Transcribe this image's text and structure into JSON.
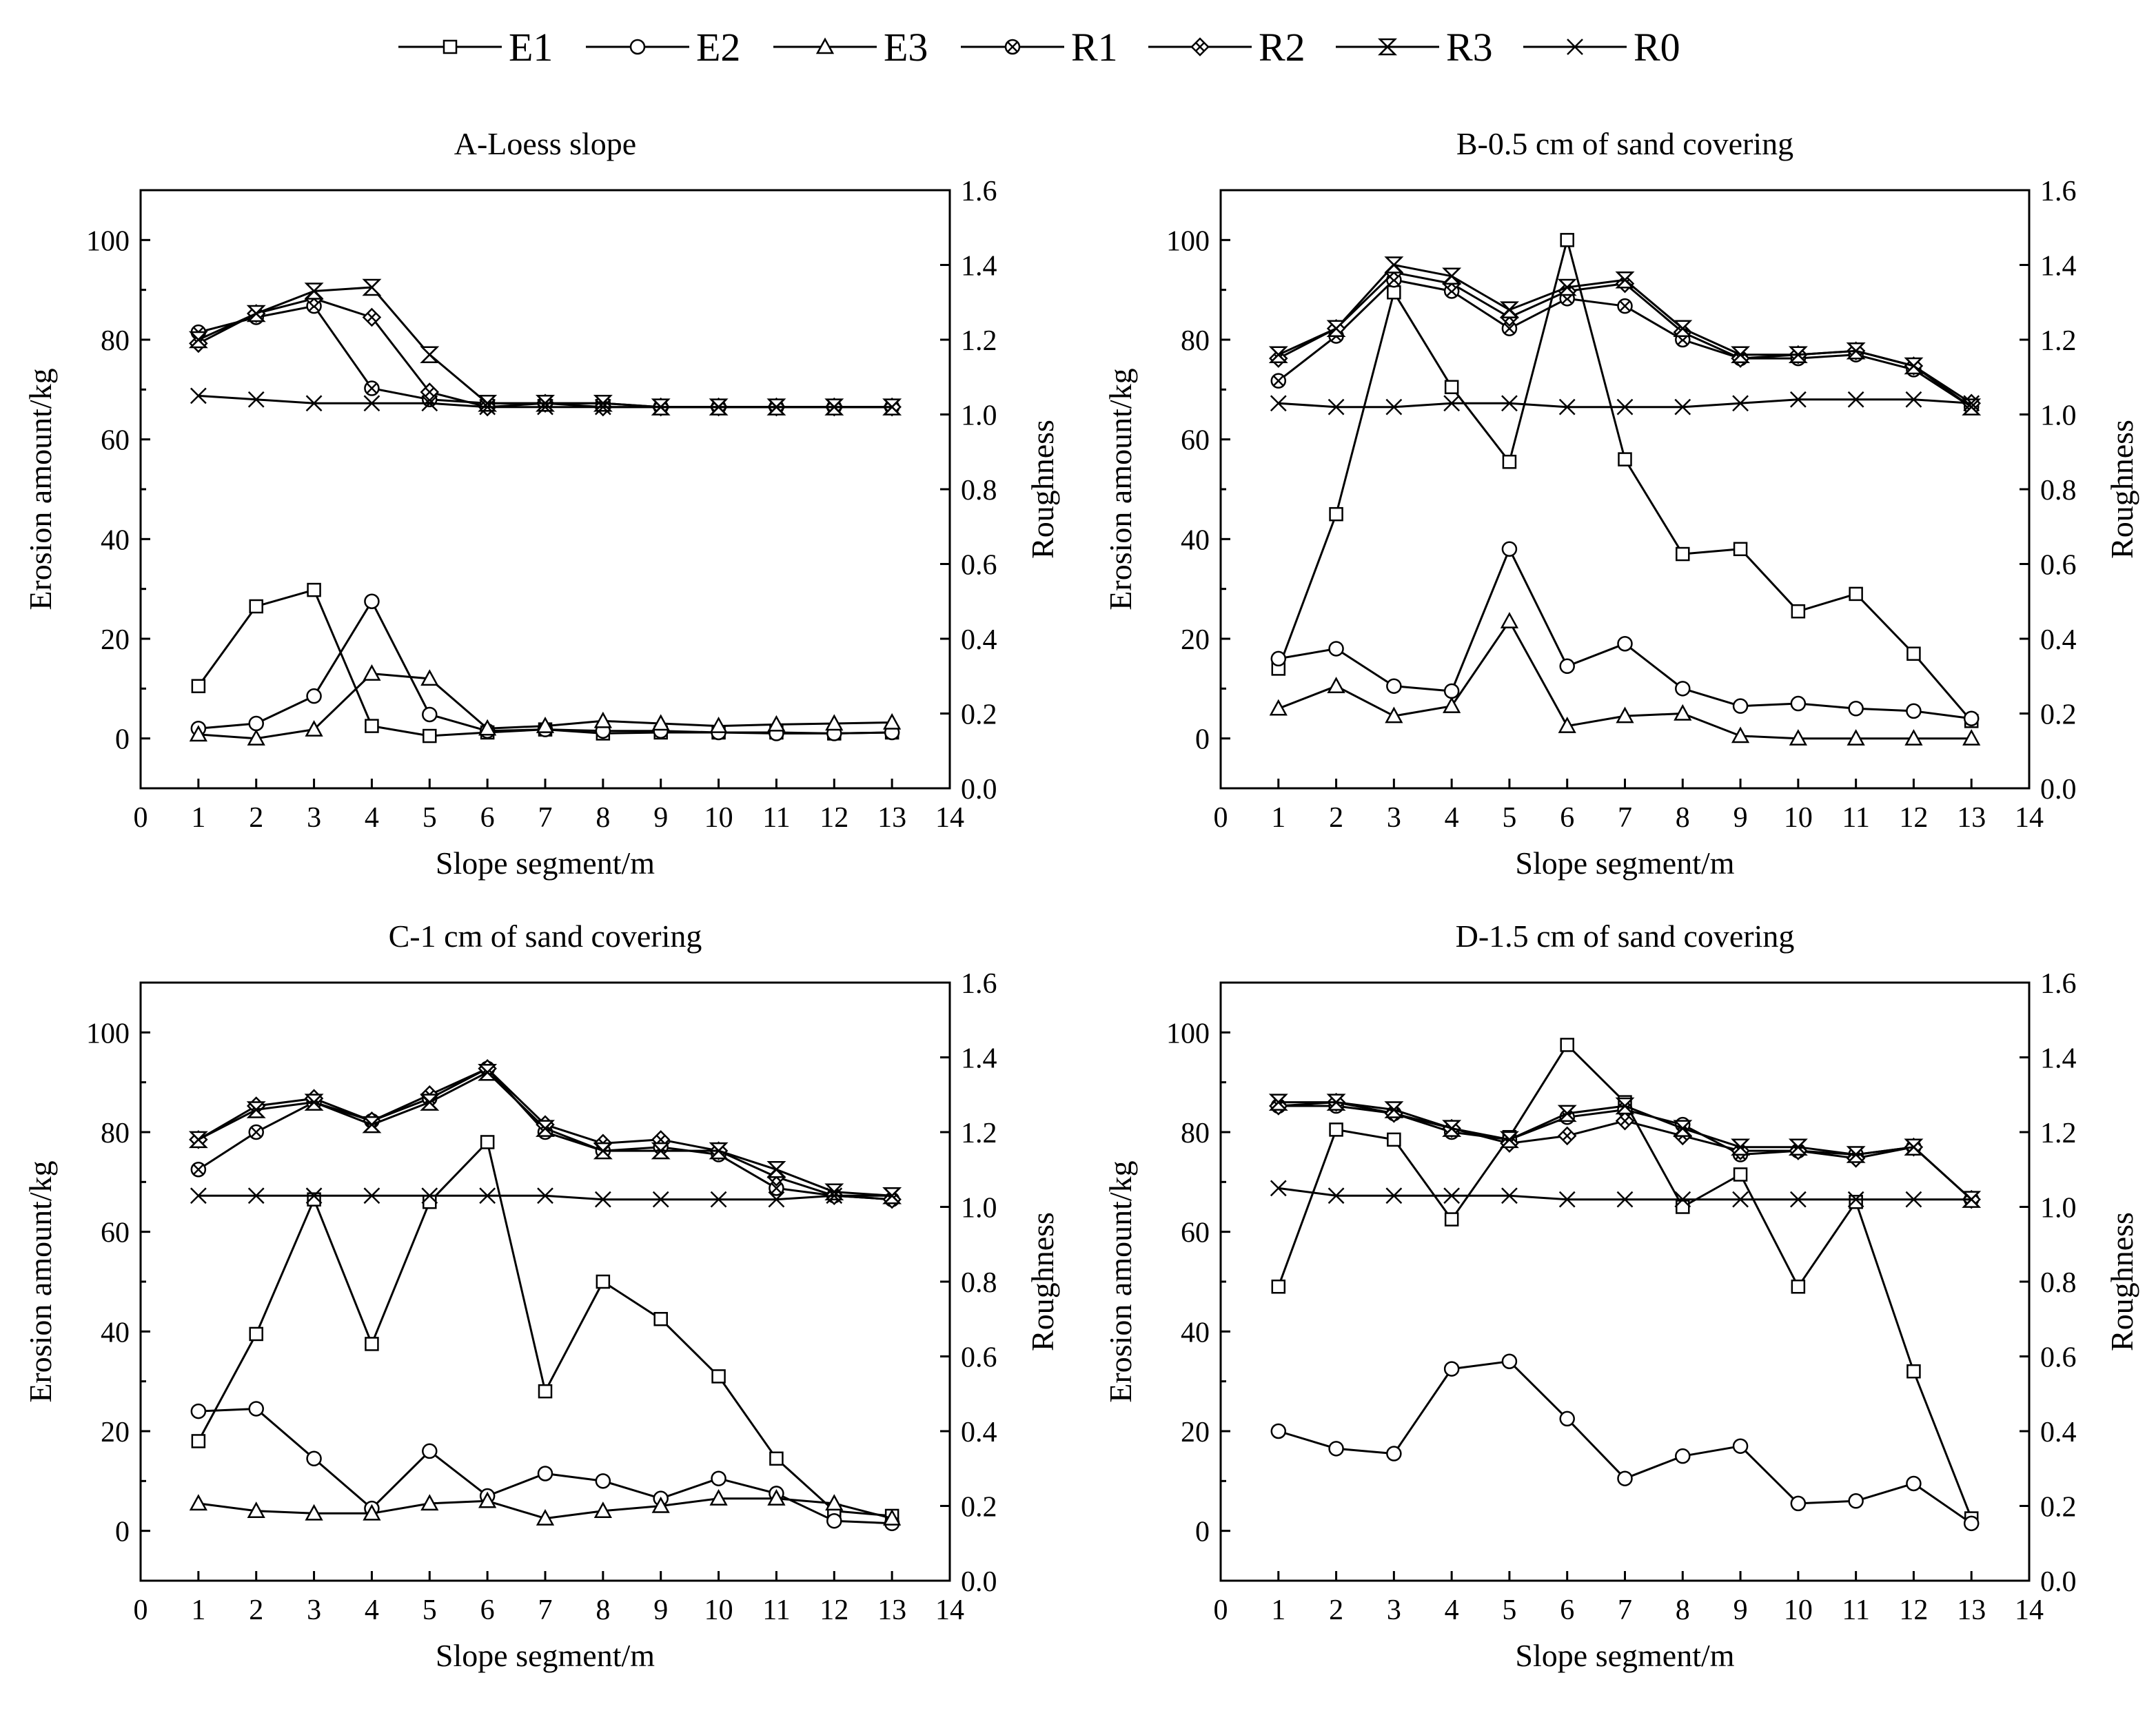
{
  "chart_data": {
    "type": "line",
    "legend": {
      "position": "top",
      "entries": [
        {
          "name": "E1",
          "marker": "square"
        },
        {
          "name": "E2",
          "marker": "circle"
        },
        {
          "name": "E3",
          "marker": "triangle"
        },
        {
          "name": "R1",
          "marker": "circle-x"
        },
        {
          "name": "R2",
          "marker": "diamond-x"
        },
        {
          "name": "R3",
          "marker": "hourglass-x"
        },
        {
          "name": "R0",
          "marker": "x"
        }
      ]
    },
    "xlabel": "Slope segment/m",
    "ylabel_left": "Erosion amount/kg",
    "ylabel_right": "Roughness",
    "xlim": [
      0,
      14
    ],
    "ylim_left": [
      -10,
      110
    ],
    "ylim_right": [
      0.0,
      1.6
    ],
    "xticks": [
      "0",
      "1",
      "2",
      "3",
      "4",
      "5",
      "6",
      "7",
      "8",
      "9",
      "10",
      "11",
      "12",
      "13",
      "14"
    ],
    "yticks_left": [
      "0",
      "20",
      "40",
      "60",
      "80",
      "100"
    ],
    "yticks_right": [
      "0.0",
      "0.2",
      "0.4",
      "0.6",
      "0.8",
      "1.0",
      "1.2",
      "1.4",
      "1.6"
    ],
    "x": [
      1,
      2,
      3,
      4,
      5,
      6,
      7,
      8,
      9,
      10,
      11,
      12,
      13
    ],
    "panels": [
      {
        "title": "A-Loess slope",
        "series": [
          {
            "name": "E1",
            "axis": "left",
            "values": [
              10.5,
              26.5,
              29.8,
              2.5,
              0.5,
              1.2,
              1.8,
              1.0,
              1.2,
              1.2,
              1.2,
              1.0,
              1.2
            ]
          },
          {
            "name": "E2",
            "axis": "left",
            "values": [
              2.0,
              3.0,
              8.5,
              27.5,
              4.8,
              1.5,
              1.8,
              1.5,
              1.5,
              1.2,
              1.0,
              1.0,
              1.2
            ]
          },
          {
            "name": "E3",
            "axis": "left",
            "values": [
              0.8,
              0.0,
              1.8,
              13.0,
              12.0,
              2.0,
              2.5,
              3.5,
              3.0,
              2.5,
              2.8,
              3.0,
              3.2
            ]
          },
          {
            "name": "R1",
            "axis": "right",
            "values": [
              1.22,
              1.26,
              1.29,
              1.07,
              1.04,
              1.03,
              1.03,
              1.03,
              1.02,
              1.02,
              1.02,
              1.02,
              1.02
            ]
          },
          {
            "name": "R2",
            "axis": "right",
            "values": [
              1.19,
              1.27,
              1.31,
              1.26,
              1.06,
              1.02,
              1.03,
              1.02,
              1.02,
              1.02,
              1.02,
              1.02,
              1.02
            ]
          },
          {
            "name": "R3",
            "axis": "right",
            "values": [
              1.2,
              1.27,
              1.33,
              1.34,
              1.16,
              1.03,
              1.03,
              1.03,
              1.02,
              1.02,
              1.02,
              1.02,
              1.02
            ]
          },
          {
            "name": "R0",
            "axis": "right",
            "values": [
              1.05,
              1.04,
              1.03,
              1.03,
              1.03,
              1.02,
              1.02,
              1.02,
              1.02,
              1.02,
              1.02,
              1.02,
              1.02
            ]
          }
        ]
      },
      {
        "title": "B-0.5 cm of sand covering",
        "series": [
          {
            "name": "E1",
            "axis": "left",
            "values": [
              14.0,
              45.0,
              89.5,
              70.5,
              55.5,
              100.0,
              56.0,
              37.0,
              38.0,
              25.5,
              29.0,
              17.0,
              3.5
            ]
          },
          {
            "name": "E2",
            "axis": "left",
            "values": [
              16.0,
              18.0,
              10.5,
              9.5,
              38.0,
              14.5,
              19.0,
              10.0,
              6.5,
              7.0,
              6.0,
              5.5,
              4.0
            ]
          },
          {
            "name": "E3",
            "axis": "left",
            "values": [
              6.0,
              10.5,
              4.5,
              6.5,
              23.5,
              2.5,
              4.5,
              5.0,
              0.5,
              0.0,
              0.0,
              0.0,
              0.0
            ]
          },
          {
            "name": "R1",
            "axis": "right",
            "values": [
              1.09,
              1.21,
              1.36,
              1.33,
              1.23,
              1.31,
              1.29,
              1.2,
              1.15,
              1.15,
              1.16,
              1.12,
              1.02
            ]
          },
          {
            "name": "R2",
            "axis": "right",
            "values": [
              1.15,
              1.23,
              1.38,
              1.35,
              1.26,
              1.33,
              1.35,
              1.22,
              1.15,
              1.16,
              1.17,
              1.13,
              1.03
            ]
          },
          {
            "name": "R3",
            "axis": "right",
            "values": [
              1.16,
              1.23,
              1.4,
              1.37,
              1.28,
              1.34,
              1.36,
              1.23,
              1.16,
              1.16,
              1.17,
              1.13,
              1.02
            ]
          },
          {
            "name": "R0",
            "axis": "right",
            "values": [
              1.03,
              1.02,
              1.02,
              1.03,
              1.03,
              1.02,
              1.02,
              1.02,
              1.03,
              1.04,
              1.04,
              1.04,
              1.03
            ]
          }
        ]
      },
      {
        "title": "C-1 cm of sand covering",
        "series": [
          {
            "name": "E1",
            "axis": "left",
            "values": [
              18.0,
              39.5,
              66.5,
              37.5,
              66.0,
              78.0,
              28.0,
              50.0,
              42.5,
              31.0,
              14.5,
              4.0,
              3.0
            ]
          },
          {
            "name": "E2",
            "axis": "left",
            "values": [
              24.0,
              24.5,
              14.5,
              4.5,
              16.0,
              7.0,
              11.5,
              10.0,
              6.5,
              10.5,
              7.5,
              2.0,
              1.5
            ]
          },
          {
            "name": "E3",
            "axis": "left",
            "values": [
              5.5,
              4.0,
              3.5,
              3.5,
              5.5,
              6.0,
              2.5,
              4.0,
              5.0,
              6.5,
              6.5,
              5.5,
              2.5
            ]
          },
          {
            "name": "R1",
            "axis": "right",
            "values": [
              1.1,
              1.2,
              1.28,
              1.23,
              1.29,
              1.37,
              1.2,
              1.15,
              1.16,
              1.14,
              1.05,
              1.03,
              1.02
            ]
          },
          {
            "name": "R2",
            "axis": "right",
            "values": [
              1.18,
              1.27,
              1.29,
              1.23,
              1.3,
              1.37,
              1.22,
              1.17,
              1.18,
              1.15,
              1.08,
              1.03,
              1.02
            ]
          },
          {
            "name": "R3",
            "axis": "right",
            "values": [
              1.18,
              1.26,
              1.28,
              1.22,
              1.28,
              1.36,
              1.21,
              1.15,
              1.15,
              1.15,
              1.1,
              1.04,
              1.03
            ]
          },
          {
            "name": "R0",
            "axis": "right",
            "values": [
              1.03,
              1.03,
              1.03,
              1.03,
              1.03,
              1.03,
              1.03,
              1.02,
              1.02,
              1.02,
              1.02,
              1.03,
              1.03
            ]
          }
        ]
      },
      {
        "title": "D-1.5 cm of sand covering",
        "series": [
          {
            "name": "E1",
            "axis": "left",
            "values": [
              49.0,
              80.5,
              78.5,
              62.5,
              79.0,
              97.5,
              86.0,
              65.0,
              71.5,
              49.0,
              66.0,
              32.0,
              2.5
            ]
          },
          {
            "name": "E2",
            "axis": "left",
            "values": [
              20.0,
              16.5,
              15.5,
              32.5,
              34.0,
              22.5,
              10.5,
              15.0,
              17.0,
              5.5,
              6.0,
              9.5,
              1.5
            ]
          },
          {
            "name": "R1",
            "axis": "right",
            "values": [
              1.27,
              1.27,
              1.25,
              1.2,
              1.18,
              1.24,
              1.26,
              1.22,
              1.14,
              1.15,
              1.14,
              1.16,
              1.02
            ]
          },
          {
            "name": "R2",
            "axis": "right",
            "values": [
              1.27,
              1.28,
              1.25,
              1.21,
              1.17,
              1.19,
              1.23,
              1.19,
              1.15,
              1.15,
              1.13,
              1.16,
              1.02
            ]
          },
          {
            "name": "R3",
            "axis": "right",
            "values": [
              1.28,
              1.28,
              1.26,
              1.21,
              1.18,
              1.25,
              1.27,
              1.21,
              1.16,
              1.16,
              1.14,
              1.16,
              1.02
            ]
          },
          {
            "name": "R0",
            "axis": "right",
            "values": [
              1.05,
              1.03,
              1.03,
              1.03,
              1.03,
              1.02,
              1.02,
              1.02,
              1.02,
              1.02,
              1.02,
              1.02,
              1.02
            ]
          }
        ]
      }
    ]
  }
}
